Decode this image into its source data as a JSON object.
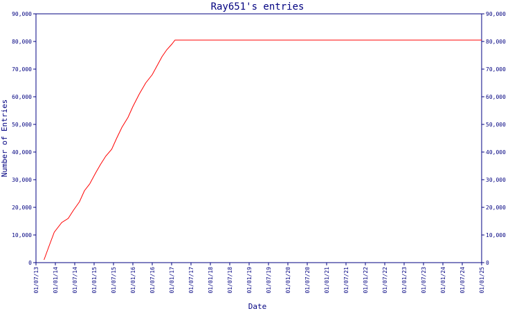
{
  "chart_data": {
    "type": "line",
    "title": "Ray651's entries",
    "xlabel": "Date",
    "ylabel": "Number of Entries",
    "x_ticks": [
      "01/07/13",
      "01/01/14",
      "01/07/14",
      "01/01/15",
      "01/07/15",
      "01/01/16",
      "01/07/16",
      "01/01/17",
      "01/07/17",
      "01/01/18",
      "01/07/18",
      "01/01/19",
      "01/07/19",
      "01/01/20",
      "01/07/20",
      "01/01/21",
      "01/07/21",
      "01/01/22",
      "01/07/22",
      "01/01/23",
      "01/07/23",
      "01/01/24",
      "01/07/24",
      "01/01/25"
    ],
    "y_ticks": [
      "0",
      "10,000",
      "20,000",
      "30,000",
      "40,000",
      "50,000",
      "60,000",
      "70,000",
      "80,000",
      "90,000"
    ],
    "ylim": [
      0,
      90000
    ],
    "xlim": [
      "2013-07-01",
      "2025-01-01"
    ],
    "grid": false,
    "colors": {
      "line": "#ff0000",
      "axes": "#000080"
    },
    "series": [
      {
        "x": [
          "2013-09-15",
          "2013-11-01",
          "2013-12-20",
          "2014-03-01",
          "2014-05-01",
          "2014-06-20",
          "2014-08-15",
          "2014-10-01",
          "2014-11-20",
          "2015-01-15",
          "2015-03-01",
          "2015-04-20",
          "2015-06-15",
          "2015-08-01",
          "2015-09-20",
          "2015-11-15",
          "2016-01-01",
          "2016-03-01",
          "2016-05-01",
          "2016-07-01",
          "2016-08-20",
          "2016-10-01",
          "2016-11-15",
          "2017-01-01",
          "2017-02-01",
          "2025-01-01"
        ],
        "y": [
          1000,
          6000,
          11000,
          14500,
          16000,
          19000,
          22000,
          26000,
          28500,
          32500,
          35500,
          38500,
          41000,
          45000,
          49000,
          52500,
          56500,
          61000,
          65000,
          68000,
          71500,
          74500,
          77000,
          79000,
          80500,
          80500
        ]
      }
    ]
  }
}
